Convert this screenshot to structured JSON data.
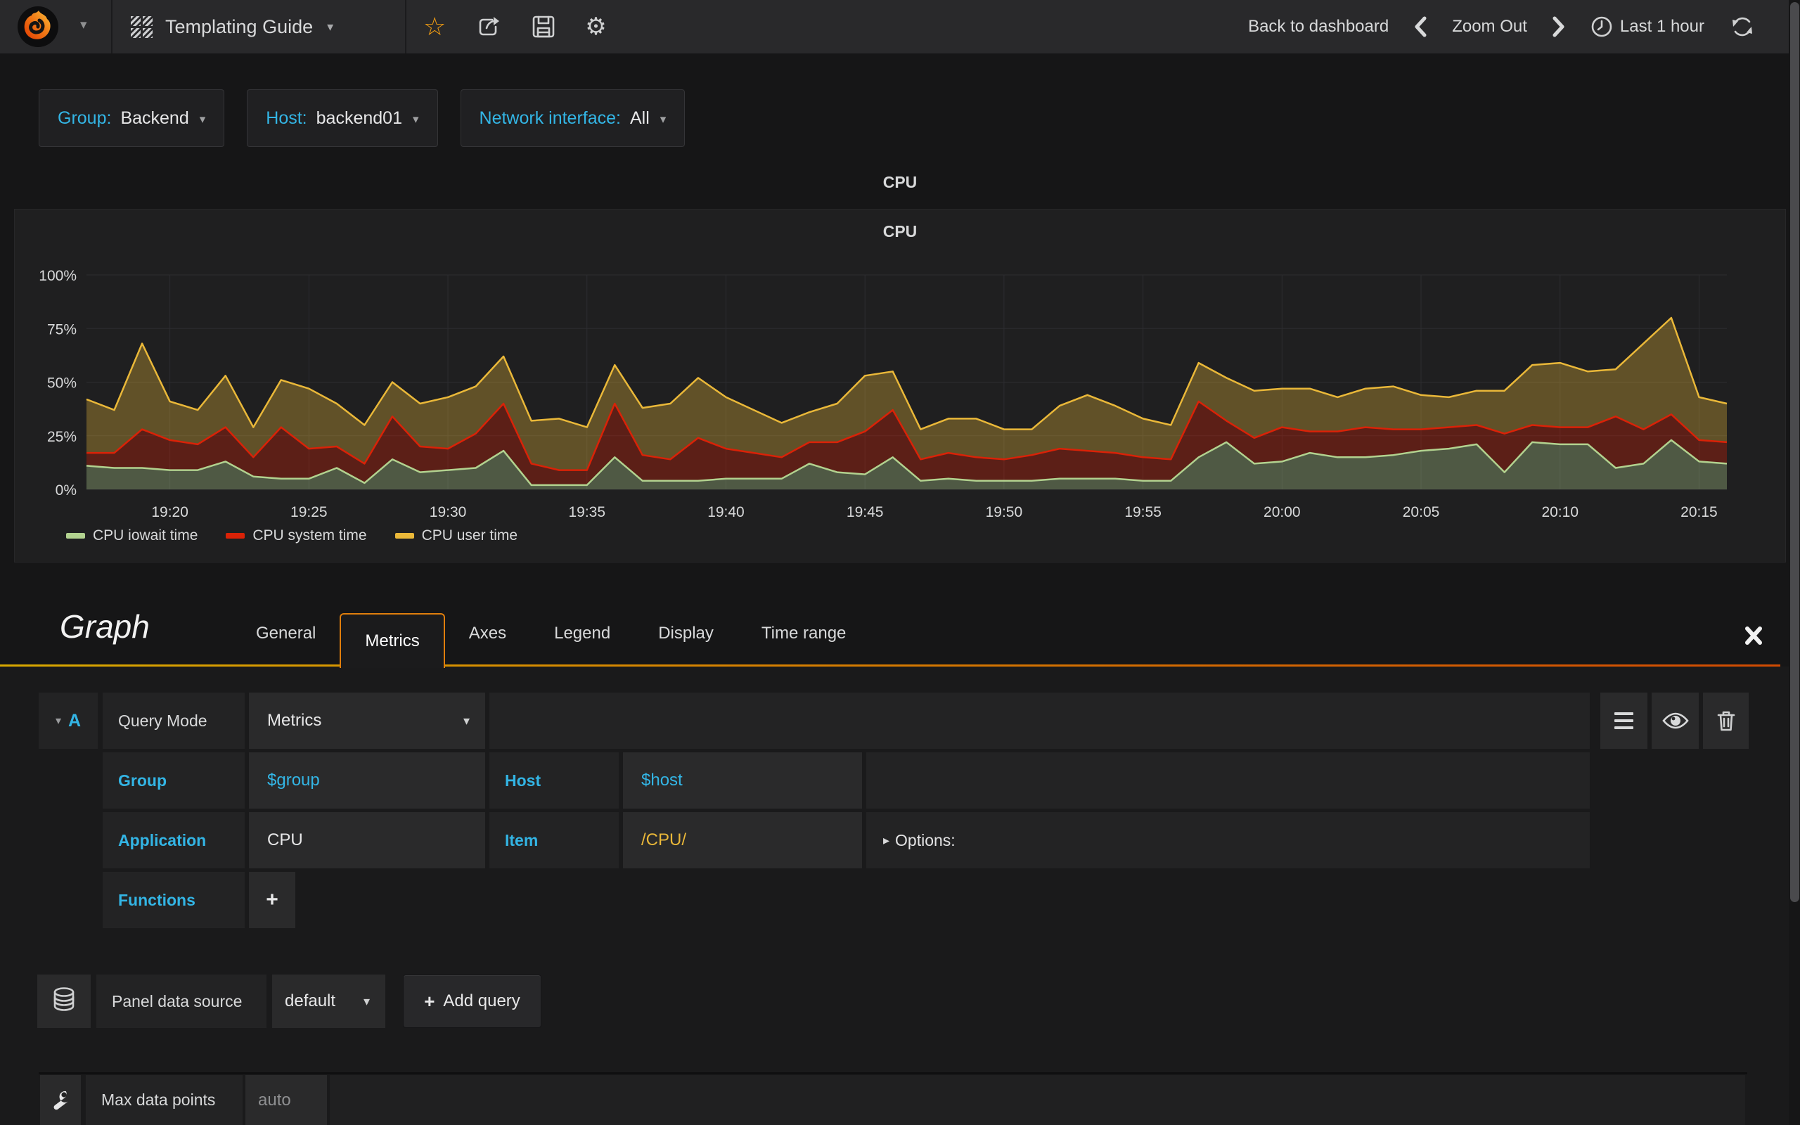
{
  "navbar": {
    "title": "Templating Guide",
    "back": "Back to dashboard",
    "zoom_out": "Zoom Out",
    "time_range": "Last 1 hour"
  },
  "variables": [
    {
      "name": "group",
      "label": "Group:",
      "value": "Backend"
    },
    {
      "name": "host",
      "label": "Host:",
      "value": "backend01"
    },
    {
      "name": "network-interface",
      "label": "Network interface:",
      "value": "All"
    }
  ],
  "panel": {
    "title": "CPU"
  },
  "chart_data": {
    "type": "area",
    "stacked": true,
    "title": "CPU",
    "ylim": [
      0,
      100
    ],
    "ytick_values": [
      0,
      25,
      50,
      75,
      100
    ],
    "ytick_labels": [
      "0%",
      "25%",
      "50%",
      "75%",
      "100%"
    ],
    "x_start": "19:17",
    "x_step_minutes": 1,
    "xticks": [
      "19:20",
      "19:25",
      "19:30",
      "19:35",
      "19:40",
      "19:45",
      "19:50",
      "19:55",
      "20:00",
      "20:05",
      "20:10",
      "20:15"
    ],
    "xtick_indices": [
      3,
      8,
      13,
      18,
      23,
      28,
      33,
      38,
      43,
      48,
      53,
      58
    ],
    "grid": true,
    "legend_position": "bottom-left",
    "series": [
      {
        "name": "CPU iowait time",
        "color": "#b2d28f",
        "values": [
          11,
          10,
          10,
          9,
          9,
          13,
          6,
          5,
          5,
          10,
          3,
          14,
          8,
          9,
          10,
          18,
          2,
          2,
          2,
          15,
          4,
          4,
          4,
          5,
          5,
          5,
          12,
          8,
          7,
          15,
          4,
          5,
          4,
          4,
          4,
          5,
          5,
          5,
          4,
          4,
          15,
          22,
          12,
          13,
          17,
          15,
          15,
          16,
          18,
          19,
          21,
          8,
          22,
          21,
          21,
          10,
          12,
          23,
          13,
          12
        ]
      },
      {
        "name": "CPU system time",
        "color": "#da2207",
        "values": [
          6,
          7,
          18,
          14,
          12,
          16,
          9,
          24,
          14,
          10,
          9,
          20,
          12,
          10,
          16,
          22,
          10,
          7,
          7,
          25,
          12,
          10,
          20,
          14,
          12,
          10,
          10,
          14,
          20,
          22,
          10,
          12,
          11,
          10,
          12,
          14,
          13,
          12,
          11,
          10,
          26,
          10,
          12,
          16,
          10,
          12,
          14,
          12,
          10,
          10,
          9,
          18,
          8,
          8,
          8,
          24,
          16,
          12,
          10,
          10
        ]
      },
      {
        "name": "CPU user time",
        "color": "#eab839",
        "values": [
          25,
          20,
          40,
          18,
          16,
          24,
          14,
          22,
          28,
          20,
          18,
          16,
          20,
          24,
          22,
          22,
          20,
          24,
          20,
          18,
          22,
          26,
          28,
          24,
          20,
          16,
          14,
          18,
          26,
          18,
          14,
          16,
          18,
          14,
          12,
          20,
          26,
          22,
          18,
          16,
          18,
          20,
          22,
          18,
          20,
          16,
          18,
          20,
          16,
          14,
          16,
          20,
          28,
          30,
          26,
          22,
          40,
          45,
          20,
          18
        ]
      }
    ]
  },
  "editor": {
    "panel_type": "Graph",
    "tabs": [
      "General",
      "Metrics",
      "Axes",
      "Legend",
      "Display",
      "Time range"
    ],
    "active_tab": "Metrics",
    "query": {
      "ref_id": "A",
      "query_mode_label": "Query Mode",
      "query_mode_value": "Metrics",
      "rows": {
        "group": {
          "label": "Group",
          "value": "$group"
        },
        "host": {
          "label": "Host",
          "value": "$host"
        },
        "application": {
          "label": "Application",
          "value": "CPU"
        },
        "item": {
          "label": "Item",
          "value": "/CPU/"
        }
      },
      "options_label": "Options:",
      "functions_label": "Functions",
      "add_function_label": "+"
    },
    "datasource": {
      "label": "Panel data source",
      "value": "default",
      "add_query_plus": "+",
      "add_query_label": "Add query"
    },
    "max_data_points": {
      "label": "Max data points",
      "placeholder": "auto"
    }
  },
  "colors": {
    "accent_cyan": "#33b5e5",
    "star_orange": "#f29d12",
    "tab_border": "#e07e0c",
    "divider_gradient_left": "#d9a900",
    "divider_gradient_right": "#d14b02",
    "series_iowait": "#b2d28f",
    "series_system": "#da2207",
    "series_user": "#eab839",
    "panel_bg": "#1f1f20",
    "navbar_bg": "#29292b",
    "page_bg": "#161617"
  }
}
